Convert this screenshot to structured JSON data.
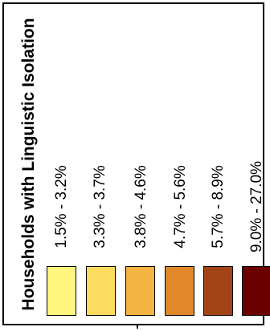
{
  "legend": {
    "title": "Households with Linguistic Isolation",
    "classes": [
      {
        "label": "1.5% - 3.2%",
        "color": "#FFF57F"
      },
      {
        "label": "3.3% - 3.7%",
        "color": "#FCDB5E"
      },
      {
        "label": "3.8% - 4.6%",
        "color": "#F5B442"
      },
      {
        "label": "4.7% - 5.6%",
        "color": "#E0882A"
      },
      {
        "label": "5.7% - 8.9%",
        "color": "#A24416"
      },
      {
        "label": "9.0% - 27.0%",
        "color": "#6B0000"
      }
    ]
  }
}
